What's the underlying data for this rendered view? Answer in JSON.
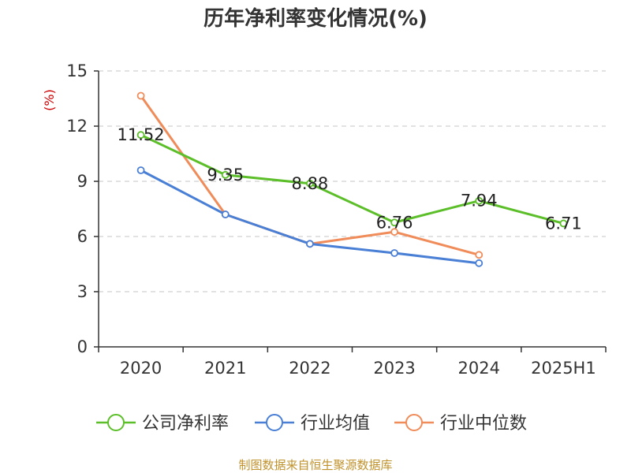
{
  "chart_data": {
    "type": "line",
    "title": "历年净利率变化情况(%)",
    "ylabel": "(%)",
    "xlabel": "",
    "categories": [
      "2020",
      "2021",
      "2022",
      "2023",
      "2024",
      "2025H1"
    ],
    "ylim": [
      0,
      15
    ],
    "yticks": [
      "0",
      "3",
      "6",
      "9",
      "12",
      "15"
    ],
    "grid": "horizontal dashed",
    "legend_position": "bottom",
    "series": [
      {
        "name": "公司净利率",
        "color": "#5cbf2a",
        "values": [
          11.52,
          9.35,
          8.88,
          6.76,
          7.94,
          6.71
        ],
        "labels": [
          "11.52",
          "9.35",
          "8.88",
          "6.76",
          "7.94",
          "6.71"
        ]
      },
      {
        "name": "行业均值",
        "color": "#4a7fd6",
        "values": [
          9.6,
          7.2,
          5.6,
          5.1,
          4.55,
          null
        ]
      },
      {
        "name": "行业中位数",
        "color": "#f08c5a",
        "values": [
          13.65,
          7.2,
          5.6,
          6.25,
          5.0,
          null
        ]
      }
    ]
  },
  "source_note": "制图数据来自恒生聚源数据库"
}
